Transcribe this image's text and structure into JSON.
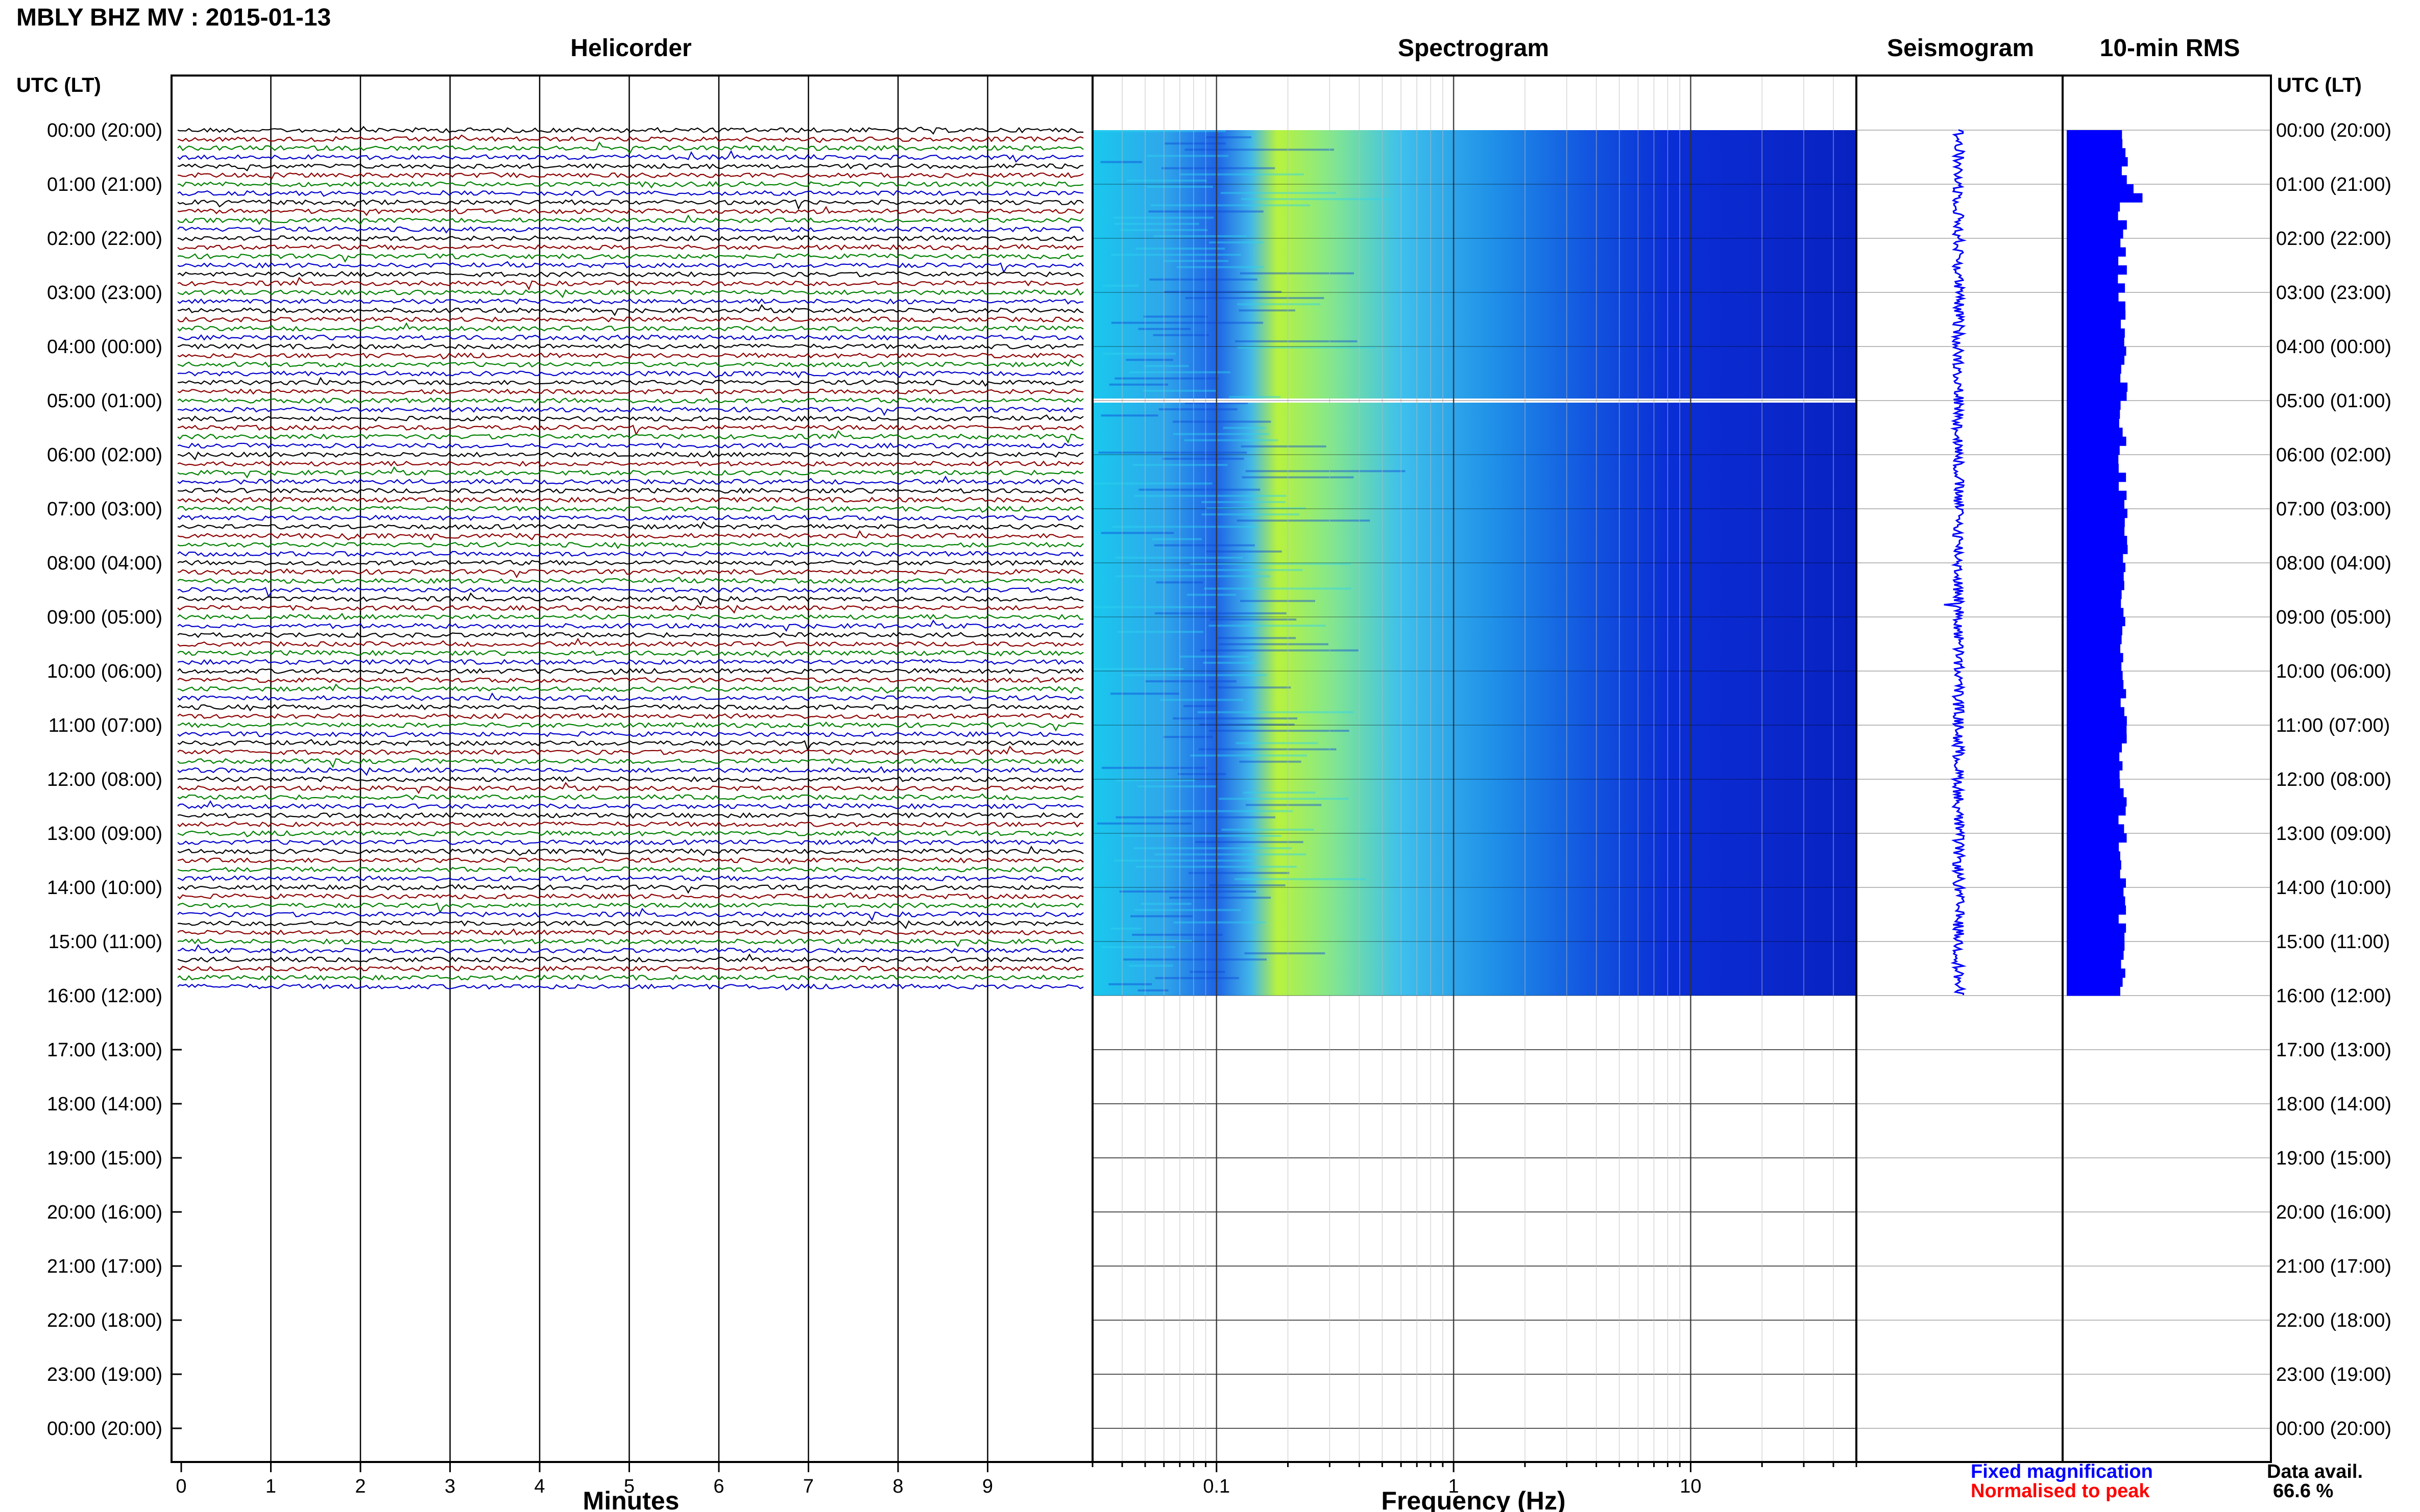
{
  "header": {
    "title": "MBLY BHZ MV : 2015-01-13",
    "utc_label_left": "UTC (LT)",
    "utc_label_right": "UTC (LT)"
  },
  "panels": {
    "helicorder_title": "Helicorder",
    "spectrogram_title": "Spectrogram",
    "seismogram_title": "Seismogram",
    "rms_title": "10-min RMS"
  },
  "axes": {
    "helicorder_xlabel": "Minutes",
    "spectrogram_xlabel": "Frequency (Hz)"
  },
  "footer": {
    "legend_fixed": "Fixed magnification",
    "legend_normalised": "Normalised to peak",
    "data_avail_label": "Data avail.",
    "data_avail_value": "66.6 %"
  },
  "colors": {
    "fixed": "#0000ff",
    "normalised": "#ff0000",
    "trace_cycle": [
      "#000000",
      "#8b0000",
      "#008000",
      "#0000cd"
    ],
    "rms_fill": "#0000ff"
  },
  "chart_data": [
    {
      "type": "line",
      "title": "Helicorder",
      "xlabel": "Minutes",
      "x_ticks": [
        "0",
        "1",
        "2",
        "3",
        "4",
        "5",
        "6",
        "7",
        "8",
        "9"
      ],
      "xlim": [
        0,
        10
      ],
      "ylabel": "UTC (LT)",
      "y_ticks": [
        "00:00 (20:00)",
        "01:00 (21:00)",
        "02:00 (22:00)",
        "03:00 (23:00)",
        "04:00 (00:00)",
        "05:00 (01:00)",
        "06:00 (02:00)",
        "07:00 (03:00)",
        "08:00 (04:00)",
        "09:00 (05:00)",
        "10:00 (06:00)",
        "11:00 (07:00)",
        "12:00 (08:00)",
        "13:00 (09:00)",
        "14:00 (10:00)",
        "15:00 (11:00)",
        "16:00 (12:00)",
        "17:00 (13:00)",
        "18:00 (14:00)",
        "19:00 (15:00)",
        "20:00 (16:00)",
        "21:00 (17:00)",
        "22:00 (18:00)",
        "23:00 (19:00)",
        "00:00 (20:00)"
      ],
      "data_start": "00:00",
      "data_end": "16:00",
      "grid": true
    },
    {
      "type": "heatmap",
      "title": "Spectrogram",
      "xlabel": "Frequency (Hz)",
      "x_scale": "log",
      "x_ticks": [
        "0.1",
        "1",
        "10"
      ],
      "xlim": [
        0.03,
        50
      ],
      "data_start": "00:00",
      "data_end": "16:00",
      "gap": "05:00",
      "grid": true
    },
    {
      "type": "line",
      "title": "Seismogram",
      "data_start": "00:00",
      "data_end": "16:00"
    },
    {
      "type": "bar",
      "title": "10-min RMS",
      "data_start": "00:00",
      "data_end": "16:00"
    }
  ]
}
